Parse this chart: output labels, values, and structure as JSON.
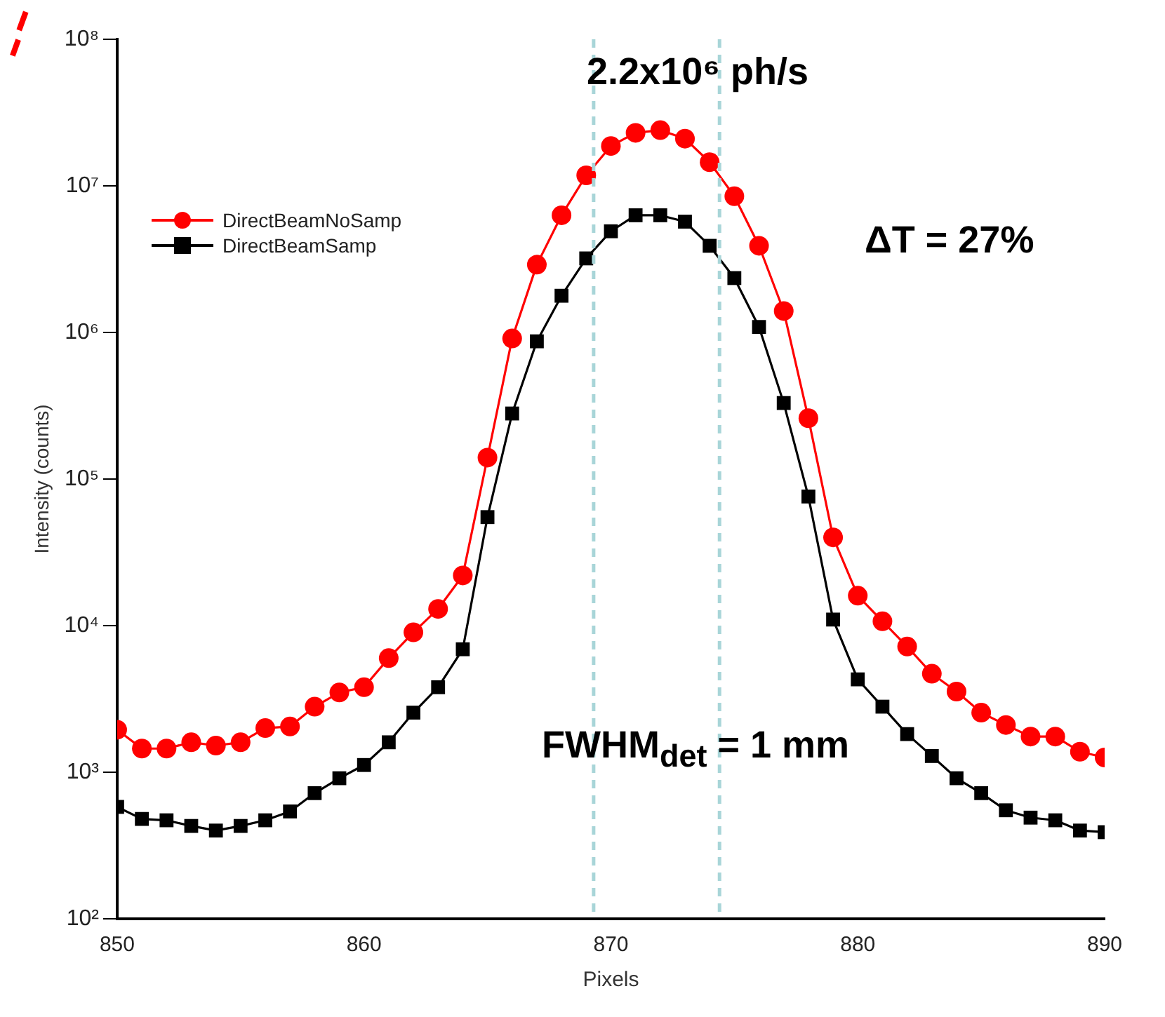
{
  "chart_data": {
    "type": "line",
    "title": "2.2x10⁶ ph/s",
    "xlabel": "Pixels",
    "ylabel": "Intensity (counts)",
    "x": [
      850,
      851,
      852,
      853,
      854,
      855,
      856,
      857,
      858,
      859,
      860,
      861,
      862,
      863,
      864,
      865,
      866,
      867,
      868,
      869,
      870,
      871,
      872,
      873,
      874,
      875,
      876,
      877,
      878,
      879,
      880,
      881,
      882,
      883,
      884,
      885,
      886,
      887,
      888,
      889,
      890
    ],
    "series": [
      {
        "name": "DirectBeamNoSamp",
        "color": "#ff0000",
        "marker": "circle",
        "values": [
          1950,
          1450,
          1450,
          1600,
          1520,
          1600,
          2000,
          2050,
          2800,
          3500,
          3800,
          6000,
          9000,
          13000,
          22000,
          140000,
          910000,
          2900000,
          6300000,
          11800000,
          18700000,
          23000000,
          24000000,
          21000000,
          14500000,
          8500000,
          3900000,
          1400000,
          260000,
          40000,
          16000,
          10700,
          7200,
          4700,
          3550,
          2550,
          2100,
          1750,
          1750,
          1380,
          1260
        ]
      },
      {
        "name": "DirectBeamSamp",
        "color": "#000000",
        "marker": "square",
        "values": [
          580,
          480,
          470,
          430,
          400,
          430,
          470,
          540,
          720,
          910,
          1120,
          1600,
          2550,
          3800,
          6900,
          55000,
          280000,
          870000,
          1780000,
          3200000,
          4900000,
          6300000,
          6300000,
          5700000,
          3900000,
          2350000,
          1090000,
          330000,
          76000,
          11000,
          4300,
          2800,
          1820,
          1290,
          910,
          720,
          550,
          490,
          470,
          400,
          390
        ]
      }
    ],
    "xlim": [
      850,
      890
    ],
    "xticks": [
      850,
      860,
      870,
      880,
      890
    ],
    "ylim": [
      100,
      100000000
    ],
    "yticks": [
      {
        "value": 100,
        "label": "10²"
      },
      {
        "value": 1000,
        "label": "10³"
      },
      {
        "value": 10000,
        "label": "10⁴"
      },
      {
        "value": 100000,
        "label": "10⁵"
      },
      {
        "value": 1000000,
        "label": "10⁶"
      },
      {
        "value": 10000000,
        "label": "10⁷"
      },
      {
        "value": 100000000,
        "label": "10⁸"
      }
    ],
    "log": "y",
    "grid": false,
    "legend": "top left",
    "line_style": "solid",
    "ref_lines": [
      {
        "axis": "x",
        "value": 869.3,
        "color": "#a8d5d8",
        "line_style": "dashed"
      },
      {
        "axis": "x",
        "value": 874.4,
        "color": "#a8d5d8",
        "line_style": "dashed"
      }
    ],
    "annotations": [
      "ΔT = 27%",
      "FWHM$_{det}$ = 1 mm"
    ]
  }
}
